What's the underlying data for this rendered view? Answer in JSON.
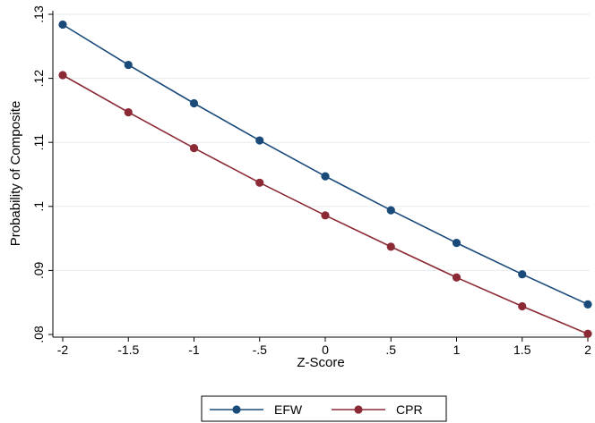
{
  "chart_data": {
    "type": "line",
    "title": "",
    "xlabel": "Z-Score",
    "ylabel": "Probability of Composite",
    "x": [
      -2,
      -1.5,
      -1,
      -0.5,
      0,
      0.5,
      1,
      1.5,
      2
    ],
    "x_tick_values": [
      -2,
      -1.5,
      -1,
      -0.5,
      0,
      0.5,
      1,
      1.5,
      2
    ],
    "x_tick_labels": [
      "-2",
      "-1.5",
      "-1",
      "-.5",
      "0",
      ".5",
      "1",
      "1.5",
      "2"
    ],
    "y_tick_values": [
      0.08,
      0.09,
      0.1,
      0.11,
      0.12,
      0.13
    ],
    "y_tick_labels": [
      ".08",
      ".09",
      ".1",
      ".11",
      ".12",
      ".13"
    ],
    "xlim": [
      -2,
      2
    ],
    "ylim": [
      0.08,
      0.13
    ],
    "grid": "horizontal",
    "legend_position": "bottom",
    "series": [
      {
        "name": "EFW",
        "color": "#1a4a7a",
        "values": [
          0.1284,
          0.1221,
          0.1161,
          0.1103,
          0.1047,
          0.0994,
          0.0943,
          0.0894,
          0.0847
        ]
      },
      {
        "name": "CPR",
        "color": "#8b2a35",
        "values": [
          0.1205,
          0.1147,
          0.1091,
          0.1037,
          0.0986,
          0.0937,
          0.0889,
          0.0844,
          0.0801
        ]
      }
    ]
  }
}
